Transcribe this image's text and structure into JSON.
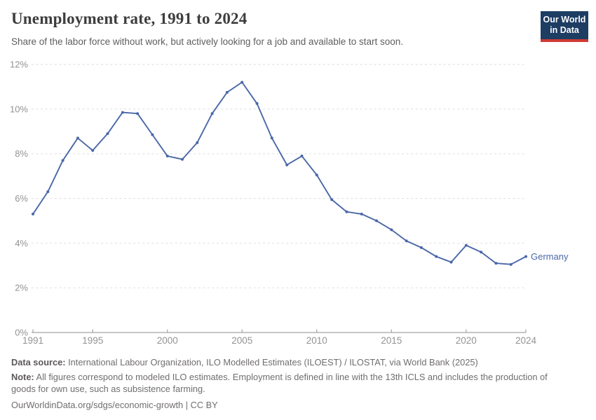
{
  "header": {
    "title": "Unemployment rate, 1991 to 2024",
    "subtitle": "Share of the labor force without work, but actively looking for a job and available to start soon.",
    "logo": {
      "line1": "Our World",
      "line2": "in Data",
      "bg_color": "#1d3d63",
      "accent_color": "#cf3a34"
    }
  },
  "chart_data": {
    "type": "line",
    "title": "Unemployment rate, 1991 to 2024",
    "xlabel": "",
    "ylabel": "",
    "grid": "horizontal-dashed",
    "legend_position": "end-of-line-label",
    "ylim": [
      0,
      12
    ],
    "xlim": [
      1991,
      2024
    ],
    "x": [
      1991,
      1992,
      1993,
      1994,
      1995,
      1996,
      1997,
      1998,
      1999,
      2000,
      2001,
      2002,
      2003,
      2004,
      2005,
      2006,
      2007,
      2008,
      2009,
      2010,
      2011,
      2012,
      2013,
      2014,
      2015,
      2016,
      2017,
      2018,
      2019,
      2020,
      2021,
      2022,
      2023,
      2024
    ],
    "series": [
      {
        "name": "Germany",
        "color": "#4a68a8",
        "values": [
          5.3,
          6.3,
          7.7,
          8.7,
          8.15,
          8.9,
          9.85,
          9.8,
          8.85,
          7.9,
          7.75,
          8.5,
          9.8,
          10.75,
          11.2,
          10.25,
          8.7,
          7.5,
          7.9,
          7.05,
          5.95,
          5.4,
          5.3,
          5.0,
          4.6,
          4.1,
          3.8,
          3.4,
          3.15,
          3.9,
          3.6,
          3.1,
          3.05,
          3.4
        ]
      }
    ],
    "yticks": {
      "values": [
        0,
        2,
        4,
        6,
        8,
        10,
        12
      ],
      "labels": [
        "0%",
        "2%",
        "4%",
        "6%",
        "8%",
        "10%",
        "12%"
      ]
    },
    "xticks": {
      "values": [
        1991,
        1995,
        2000,
        2005,
        2010,
        2015,
        2020,
        2024
      ],
      "labels": [
        "1991",
        "1995",
        "2000",
        "2005",
        "2010",
        "2015",
        "2020",
        "2024"
      ]
    },
    "colors": {
      "grid": "#e2e2e2",
      "axis": "#a5a5a5",
      "tick_label": "#939393",
      "series_label": "#4a68a8"
    }
  },
  "footer": {
    "data_source_label": "Data source:",
    "data_source_text": " International Labour Organization, ILO Modelled Estimates (ILOEST) / ILOSTAT, via World Bank (2025)",
    "note_label": "Note:",
    "note_text": " All figures correspond to modeled ILO estimates. Employment is defined in line with the 13th ICLS and includes the production of goods for own use, such as subsistence farming.",
    "link": "OurWorldinData.org/sdgs/economic-growth",
    "license": " | CC BY"
  }
}
